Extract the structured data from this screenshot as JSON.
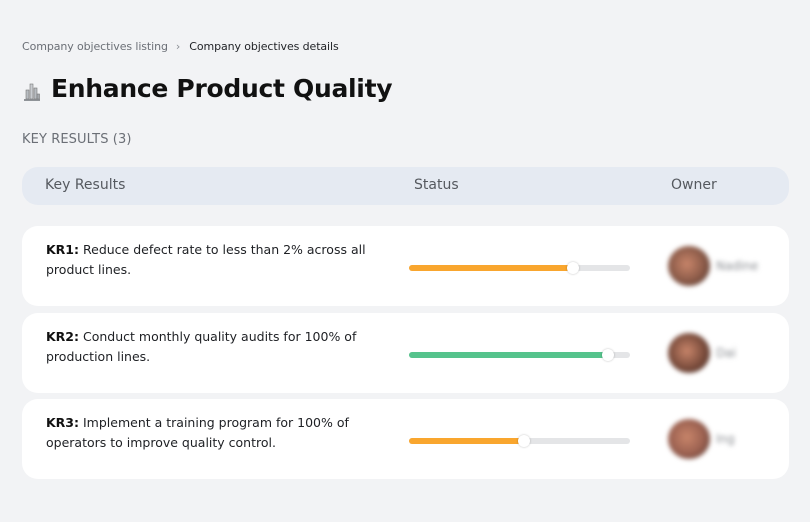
{
  "breadcrumb": {
    "items": [
      {
        "label": "Company objectives listing"
      },
      {
        "label": "Company objectives details"
      }
    ],
    "separator": "›"
  },
  "objective": {
    "icon": "buildings-chart-icon",
    "title": "Enhance Product Quality"
  },
  "key_results_section": {
    "label": "KEY RESULTS (3)",
    "count": 3
  },
  "table": {
    "columns": [
      "Key Results",
      "Status",
      "Owner"
    ],
    "rows": [
      {
        "id": "KR1:",
        "text": "Reduce defect rate to less than 2% across all product lines.",
        "progress": 74,
        "progress_color": "#f9a62e",
        "owner": {
          "name": "Nadine",
          "avatar_color": "#8a5a48"
        }
      },
      {
        "id": "KR2:",
        "text": "Conduct monthly quality audits for 100% of production lines.",
        "progress": 90,
        "progress_color": "#55c38c",
        "owner": {
          "name": "Dai",
          "avatar_color": "#7a4c3c"
        }
      },
      {
        "id": "KR3:",
        "text": "Implement a training program for 100% of operators to improve quality control.",
        "progress": 52,
        "progress_color": "#f9a62e",
        "owner": {
          "name": "Ing",
          "avatar_color": "#9a6050"
        }
      }
    ]
  },
  "colors": {
    "background": "#f2f3f5",
    "header_bg": "#e5eaf2",
    "card_bg": "#ffffff",
    "track": "#e4e5e7",
    "progress_orange": "#f9a62e",
    "progress_green": "#55c38c"
  }
}
